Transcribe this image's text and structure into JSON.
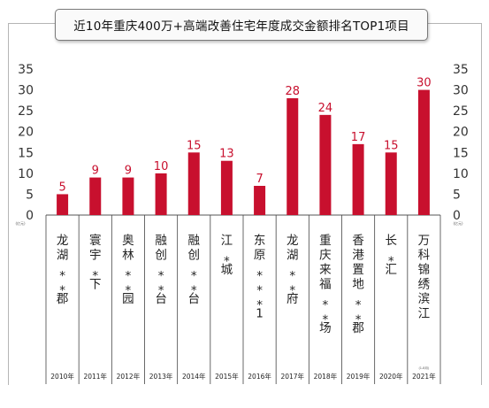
{
  "title": "近10年重庆400万+高端改善住宅年度成交金额排名TOP1项目",
  "chart_data": {
    "type": "bar",
    "ylim": [
      0,
      35
    ],
    "yticks": [
      0,
      5,
      10,
      15,
      20,
      25,
      30,
      35
    ],
    "y_unit": "(亿元)",
    "bar_color": "#c8102e",
    "grid": false,
    "categories": [
      {
        "name": [
          "龙",
          "湖",
          "*",
          "*",
          "郡"
        ],
        "year": "2010年"
      },
      {
        "name": [
          "寰",
          "宇",
          "*",
          "下"
        ],
        "year": "2011年"
      },
      {
        "name": [
          "奥",
          "林",
          "*",
          "*",
          "园"
        ],
        "year": "2012年"
      },
      {
        "name": [
          "融",
          "创",
          "*",
          "*",
          "台"
        ],
        "year": "2013年"
      },
      {
        "name": [
          "融",
          "创",
          "*",
          "*",
          "台"
        ],
        "year": "2014年"
      },
      {
        "name": [
          "江",
          "*",
          "城"
        ],
        "year": "2015年"
      },
      {
        "name": [
          "东",
          "原",
          "*",
          "*",
          "*",
          "1"
        ],
        "year": "2016年"
      },
      {
        "name": [
          "龙",
          "湖",
          "*",
          "*",
          "府"
        ],
        "year": "2017年"
      },
      {
        "name": [
          "重",
          "庆",
          "来",
          "福",
          "*",
          "*",
          "场"
        ],
        "year": "2018年"
      },
      {
        "name": [
          "香",
          "港",
          "置",
          "地",
          "*",
          "*",
          "郡"
        ],
        "year": "2019年"
      },
      {
        "name": [
          "长",
          "*",
          "汇"
        ],
        "year": "2020年"
      },
      {
        "name": [
          "万",
          "科",
          "锦",
          "绣",
          "滨",
          "江"
        ],
        "year": "2021年",
        "note": "(1-8月)"
      }
    ],
    "values": [
      5,
      9,
      9,
      10,
      15,
      13,
      7,
      28,
      24,
      17,
      15,
      30
    ]
  }
}
